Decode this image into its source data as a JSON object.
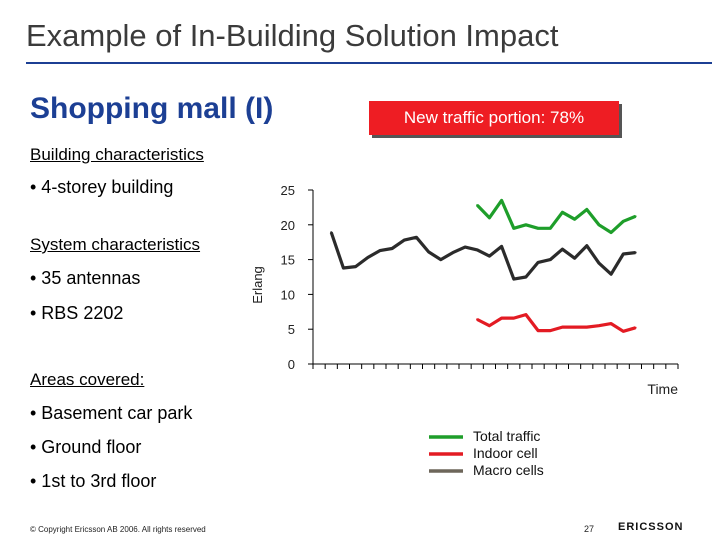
{
  "slide": {
    "title": "Example of In-Building Solution Impact",
    "subtitle": "Shopping mall (I)",
    "callout": "New traffic portion: 78%",
    "sections": {
      "building_heading": "Building characteristics",
      "building_items": [
        "• 4-storey building"
      ],
      "system_heading": "System characteristics",
      "system_items": [
        "• 35 antennas",
        "• RBS 2202"
      ],
      "areas_heading": "Areas covered:",
      "areas_items": [
        "• Basement car park",
        "• Ground floor",
        "• 1st to 3rd floor"
      ]
    },
    "footer": {
      "copyright": "© Copyright Ericsson AB 2006. All rights reserved",
      "page": "27",
      "logo_text": "ERICSSON"
    }
  },
  "colors": {
    "title_blue": "#1c3f94",
    "callout_red": "#ee1d23",
    "total": "#1e9e2a",
    "indoor": "#e31b23",
    "macro": "#2b2b2b"
  },
  "chart_data": {
    "type": "line",
    "xlabel": "Time",
    "ylabel": "Erlang",
    "ylim": [
      0,
      25
    ],
    "yticks": [
      "0",
      "5",
      "10",
      "15",
      "20",
      "25"
    ],
    "x": [
      1,
      2,
      3,
      4,
      5,
      6,
      7,
      8,
      9,
      10,
      11,
      12,
      13,
      14,
      15,
      16,
      17,
      18,
      19,
      20,
      21,
      22,
      23,
      24,
      25,
      26,
      27,
      28,
      29,
      30
    ],
    "legend": [
      "Total traffic",
      "Indoor cell",
      "Macro cells"
    ],
    "series": [
      {
        "name": "Total traffic",
        "color": "#1e9e2a",
        "values": [
          null,
          null,
          null,
          null,
          null,
          null,
          null,
          null,
          null,
          null,
          null,
          null,
          null,
          22.8,
          21.0,
          23.5,
          19.5,
          20.0,
          19.5,
          19.5,
          21.8,
          20.8,
          22.2,
          20.0,
          18.9,
          20.5,
          21.2,
          null,
          null,
          null
        ]
      },
      {
        "name": "Indoor cell",
        "color": "#e31b23",
        "values": [
          null,
          null,
          null,
          null,
          null,
          null,
          null,
          null,
          null,
          null,
          null,
          null,
          null,
          6.4,
          5.5,
          6.6,
          6.6,
          7.1,
          4.8,
          4.8,
          5.3,
          5.3,
          5.3,
          5.5,
          5.8,
          4.7,
          5.2,
          null,
          null,
          null
        ]
      },
      {
        "name": "Macro cells",
        "color": "#2b2b2b",
        "values": [
          null,
          18.9,
          13.8,
          14.0,
          15.3,
          16.3,
          16.6,
          17.8,
          18.2,
          16.1,
          15.0,
          16.0,
          16.8,
          16.4,
          15.5,
          16.9,
          12.2,
          12.5,
          14.6,
          15.0,
          16.5,
          15.2,
          17.0,
          14.5,
          12.9,
          15.8,
          16.0,
          null,
          null,
          null
        ]
      }
    ]
  }
}
